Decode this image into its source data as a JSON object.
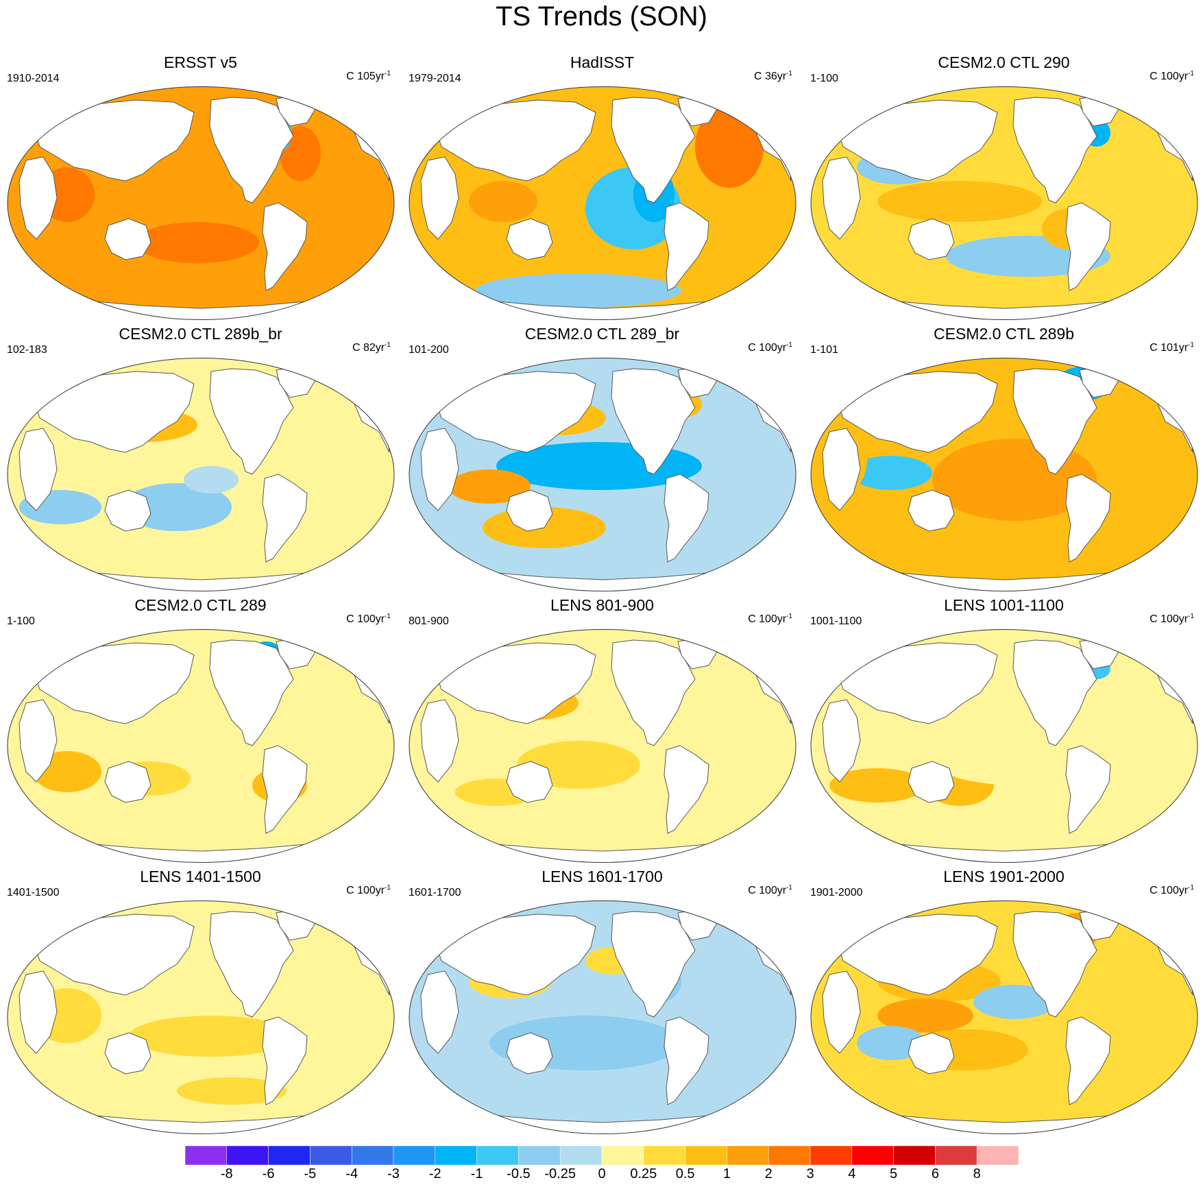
{
  "title": "TS Trends (SON)",
  "panels": [
    {
      "title": "ERSST v5",
      "period": "1910-2014",
      "trend_unit_prefix": "C",
      "trend_years": "105yr",
      "trend_exp": "-1",
      "dominant_category": "1"
    },
    {
      "title": "HadISST",
      "period": "1979-2014",
      "trend_unit_prefix": "C",
      "trend_years": "36yr",
      "trend_exp": "-1",
      "dominant_category": "0.5"
    },
    {
      "title": "CESM2.0 CTL 290",
      "period": "1-100",
      "trend_unit_prefix": "C",
      "trend_years": "100yr",
      "trend_exp": "-1",
      "dominant_category": "0.25"
    },
    {
      "title": "CESM2.0 CTL 289b_br",
      "period": "102-183",
      "trend_unit_prefix": "C",
      "trend_years": "82yr",
      "trend_exp": "-1",
      "dominant_category": "0"
    },
    {
      "title": "CESM2.0 CTL 289_br",
      "period": "101-200",
      "trend_unit_prefix": "C",
      "trend_years": "100yr",
      "trend_exp": "-1",
      "dominant_category": "-0.25"
    },
    {
      "title": "CESM2.0 CTL 289b",
      "period": "1-101",
      "trend_unit_prefix": "C",
      "trend_years": "101yr",
      "trend_exp": "-1",
      "dominant_category": "0.5"
    },
    {
      "title": "CESM2.0 CTL 289",
      "period": "1-100",
      "trend_unit_prefix": "C",
      "trend_years": "100yr",
      "trend_exp": "-1",
      "dominant_category": "0"
    },
    {
      "title": "LENS 801-900",
      "period": "801-900",
      "trend_unit_prefix": "C",
      "trend_years": "100yr",
      "trend_exp": "-1",
      "dominant_category": "0"
    },
    {
      "title": "LENS 1001-1100",
      "period": "1001-1100",
      "trend_unit_prefix": "C",
      "trend_years": "100yr",
      "trend_exp": "-1",
      "dominant_category": "0"
    },
    {
      "title": "LENS 1401-1500",
      "period": "1401-1500",
      "trend_unit_prefix": "C",
      "trend_years": "100yr",
      "trend_exp": "-1",
      "dominant_category": "0"
    },
    {
      "title": "LENS 1601-1700",
      "period": "1601-1700",
      "trend_unit_prefix": "C",
      "trend_years": "100yr",
      "trend_exp": "-1",
      "dominant_category": "-0.25"
    },
    {
      "title": "LENS 1901-2000",
      "period": "1901-2000",
      "trend_unit_prefix": "C",
      "trend_years": "100yr",
      "trend_exp": "-1",
      "dominant_category": "0.25"
    }
  ],
  "colorbar": {
    "colors": [
      "#8c30f0",
      "#3c14f5",
      "#1e28f0",
      "#3c5ae6",
      "#3278e6",
      "#1e96f5",
      "#00b4f5",
      "#3cc8f5",
      "#8ccdf0",
      "#b4dcf0",
      "#fff59b",
      "#ffdc3c",
      "#ffbe14",
      "#ffa00a",
      "#ff7800",
      "#ff3c00",
      "#ff0000",
      "#d20000",
      "#dc3c3c",
      "#ffb4b4"
    ],
    "labels": [
      "-8",
      "-6",
      "-5",
      "-4",
      "-3",
      "-2",
      "-1",
      "-0.5",
      "-0.25",
      "0",
      "0.25",
      "0.5",
      "1",
      "2",
      "3",
      "4",
      "5",
      "6",
      "8"
    ]
  }
}
